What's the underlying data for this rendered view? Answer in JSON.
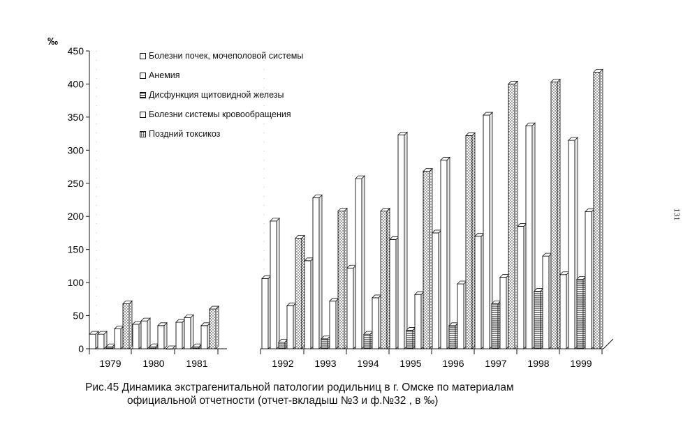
{
  "chart_data": {
    "type": "bar",
    "unit_label": "‰",
    "ylim": [
      0,
      450
    ],
    "yticks": [
      "0",
      "50",
      "100",
      "150",
      "200",
      "250",
      "300",
      "350",
      "400",
      "450"
    ],
    "categories": [
      "1979",
      "1980",
      "1981",
      "1992",
      "1993",
      "1994",
      "1995",
      "1996",
      "1997",
      "1998",
      "1999"
    ],
    "series": [
      {
        "name": "Болезни почек, мочеполовой системы",
        "pattern": "plain",
        "values": [
          22,
          37,
          40,
          106,
          133,
          122,
          165,
          175,
          170,
          185,
          112
        ]
      },
      {
        "name": "Анемия",
        "pattern": "plain",
        "values": [
          22,
          42,
          47,
          193,
          228,
          257,
          323,
          285,
          353,
          337,
          315
        ]
      },
      {
        "name": "Дисфункция щитовидной железы",
        "pattern": "hatch",
        "values": [
          3,
          3,
          3,
          10,
          15,
          22,
          28,
          35,
          68,
          87,
          105
        ]
      },
      {
        "name": "Болезни системы кровообращения",
        "pattern": "plain",
        "values": [
          30,
          35,
          35,
          65,
          72,
          77,
          82,
          98,
          108,
          140,
          207
        ]
      },
      {
        "name": "Поздний токсикоз",
        "pattern": "dot",
        "values": [
          68,
          0,
          60,
          167,
          208,
          208,
          268,
          322,
          400,
          403,
          418
        ]
      }
    ]
  },
  "caption": {
    "line1": "Рис.45  Динамика экстрагенитальной патологии родильниц в г. Омске по материалам",
    "line2": "официальной отчетности (отчет-вкладыш №3  и ф.№32 , в ‰)"
  },
  "page_number": "131",
  "colors": {
    "ink": "#111111",
    "paper": "#ffffff"
  }
}
